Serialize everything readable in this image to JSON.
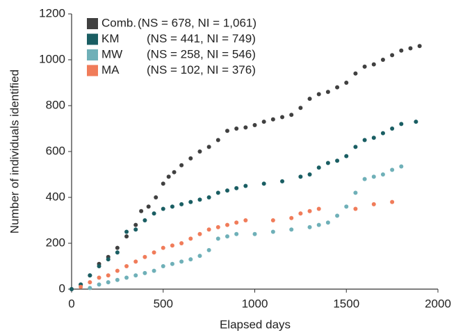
{
  "chart_data": {
    "type": "scatter",
    "xlabel": "Elapsed days",
    "ylabel": "Number of individuals identified",
    "xlim": [
      0,
      2000
    ],
    "xticks": [
      0,
      500,
      1000,
      1500,
      2000
    ],
    "ylim": [
      0,
      1200
    ],
    "yticks": [
      0,
      200,
      400,
      600,
      800,
      1000,
      1200
    ],
    "grid": false,
    "legend": "upper-left",
    "series": [
      {
        "name": "Comb.",
        "stats": "(NS = 678, NI = 1,061)",
        "color": "#404040",
        "x": [
          0,
          50,
          100,
          150,
          200,
          250,
          300,
          350,
          380,
          420,
          460,
          500,
          530,
          560,
          600,
          650,
          700,
          750,
          800,
          850,
          900,
          950,
          1000,
          1050,
          1100,
          1150,
          1200,
          1250,
          1300,
          1350,
          1400,
          1450,
          1500,
          1550,
          1600,
          1650,
          1700,
          1750,
          1800,
          1850,
          1900
        ],
        "values": [
          0,
          20,
          60,
          110,
          140,
          180,
          230,
          280,
          340,
          360,
          400,
          460,
          490,
          510,
          540,
          570,
          600,
          620,
          650,
          690,
          700,
          705,
          715,
          730,
          740,
          750,
          760,
          790,
          830,
          850,
          860,
          880,
          900,
          940,
          970,
          980,
          1000,
          1020,
          1040,
          1050,
          1060
        ]
      },
      {
        "name": "KM",
        "stats": "(NS = 441, NI = 749)",
        "color": "#1a5e63",
        "x": [
          0,
          50,
          100,
          150,
          200,
          250,
          300,
          350,
          400,
          450,
          500,
          550,
          600,
          650,
          700,
          750,
          800,
          850,
          900,
          950,
          1050,
          1150,
          1250,
          1300,
          1350,
          1400,
          1450,
          1500,
          1550,
          1600,
          1650,
          1700,
          1750,
          1800,
          1880
        ],
        "values": [
          0,
          20,
          60,
          100,
          130,
          160,
          250,
          260,
          300,
          330,
          350,
          360,
          370,
          380,
          390,
          400,
          420,
          430,
          440,
          450,
          460,
          470,
          490,
          500,
          530,
          550,
          560,
          580,
          620,
          650,
          660,
          680,
          700,
          720,
          730
        ]
      },
      {
        "name": "MW",
        "stats": "(NS = 258, NI = 546)",
        "color": "#6fb0b8",
        "x": [
          100,
          150,
          200,
          250,
          300,
          350,
          400,
          450,
          500,
          550,
          600,
          650,
          700,
          750,
          800,
          850,
          900,
          1000,
          1100,
          1200,
          1300,
          1350,
          1400,
          1450,
          1500,
          1550,
          1600,
          1650,
          1700,
          1750,
          1800
        ],
        "values": [
          5,
          20,
          30,
          40,
          50,
          60,
          70,
          80,
          100,
          110,
          120,
          130,
          145,
          170,
          220,
          230,
          240,
          240,
          250,
          260,
          270,
          280,
          290,
          320,
          360,
          420,
          480,
          490,
          500,
          520,
          535
        ]
      },
      {
        "name": "MA",
        "stats": "(NS = 102, NI = 376)",
        "color": "#f07c5a",
        "x": [
          50,
          100,
          150,
          200,
          250,
          300,
          350,
          400,
          450,
          500,
          550,
          600,
          650,
          700,
          750,
          800,
          850,
          900,
          950,
          1100,
          1200,
          1250,
          1300,
          1350,
          1550,
          1650,
          1750
        ],
        "values": [
          10,
          30,
          50,
          60,
          80,
          100,
          120,
          140,
          160,
          180,
          190,
          200,
          220,
          240,
          260,
          270,
          280,
          290,
          300,
          300,
          310,
          330,
          340,
          350,
          350,
          370,
          380
        ]
      }
    ]
  }
}
